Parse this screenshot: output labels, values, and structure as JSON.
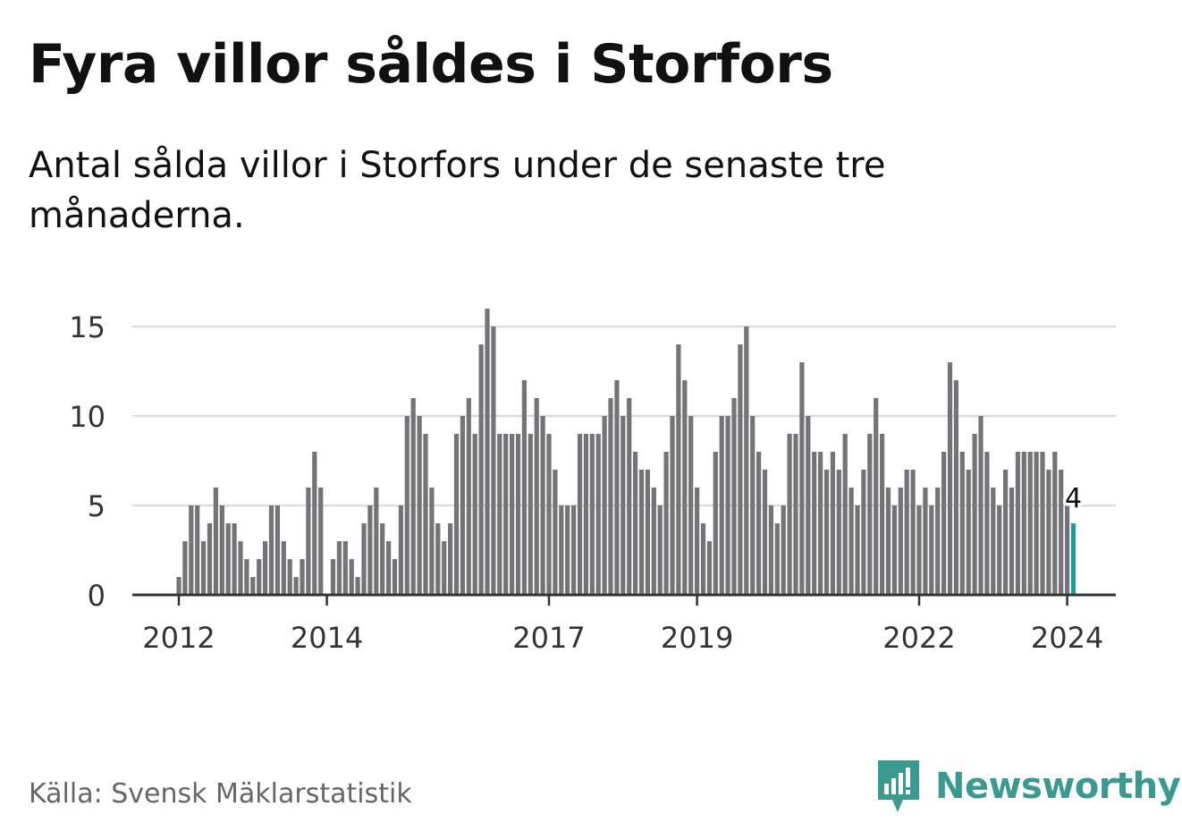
{
  "title": "Fyra villor såldes i Storfors",
  "subtitle": "Antal sålda villor i Storfors under de senaste tre månaderna.",
  "source": "Källa: Svensk Mäklarstatistik",
  "brand": "Newsworthy",
  "colors": {
    "bar": "#737378",
    "highlight": "#1f9e97",
    "grid": "#dddddd",
    "axis": "#333333",
    "brand": "#3a9a90"
  },
  "chart_data": {
    "type": "bar",
    "title": "Fyra villor såldes i Storfors",
    "xlabel": "",
    "ylabel": "",
    "ylim": [
      0,
      16
    ],
    "yticks": [
      0,
      5,
      10,
      15
    ],
    "grid": true,
    "start_year": 2012,
    "start_month": 1,
    "xtick_labels": [
      {
        "label": "2012",
        "index": 0
      },
      {
        "label": "2014",
        "index": 24
      },
      {
        "label": "2017",
        "index": 60
      },
      {
        "label": "2019",
        "index": 84
      },
      {
        "label": "2022",
        "index": 120
      },
      {
        "label": "2024",
        "index": 144
      }
    ],
    "highlight_label": "4",
    "values": [
      1,
      3,
      5,
      5,
      3,
      4,
      6,
      5,
      4,
      4,
      3,
      2,
      1,
      2,
      3,
      5,
      5,
      3,
      2,
      1,
      2,
      6,
      8,
      6,
      0,
      2,
      3,
      3,
      2,
      1,
      4,
      5,
      6,
      4,
      3,
      2,
      5,
      10,
      11,
      10,
      9,
      6,
      4,
      3,
      4,
      9,
      10,
      11,
      9,
      14,
      16,
      15,
      9,
      9,
      9,
      9,
      12,
      9,
      11,
      10,
      9,
      7,
      5,
      5,
      5,
      9,
      9,
      9,
      9,
      10,
      11,
      12,
      10,
      11,
      8,
      7,
      7,
      6,
      5,
      8,
      10,
      14,
      12,
      10,
      6,
      4,
      3,
      8,
      10,
      10,
      11,
      14,
      15,
      10,
      8,
      7,
      5,
      4,
      5,
      9,
      9,
      13,
      10,
      8,
      8,
      7,
      8,
      7,
      9,
      6,
      5,
      7,
      9,
      11,
      9,
      6,
      5,
      6,
      7,
      7,
      5,
      6,
      5,
      6,
      8,
      13,
      12,
      8,
      7,
      9,
      10,
      8,
      6,
      5,
      7,
      6,
      8,
      8,
      8,
      8,
      8,
      7,
      8,
      7,
      5,
      4
    ]
  }
}
